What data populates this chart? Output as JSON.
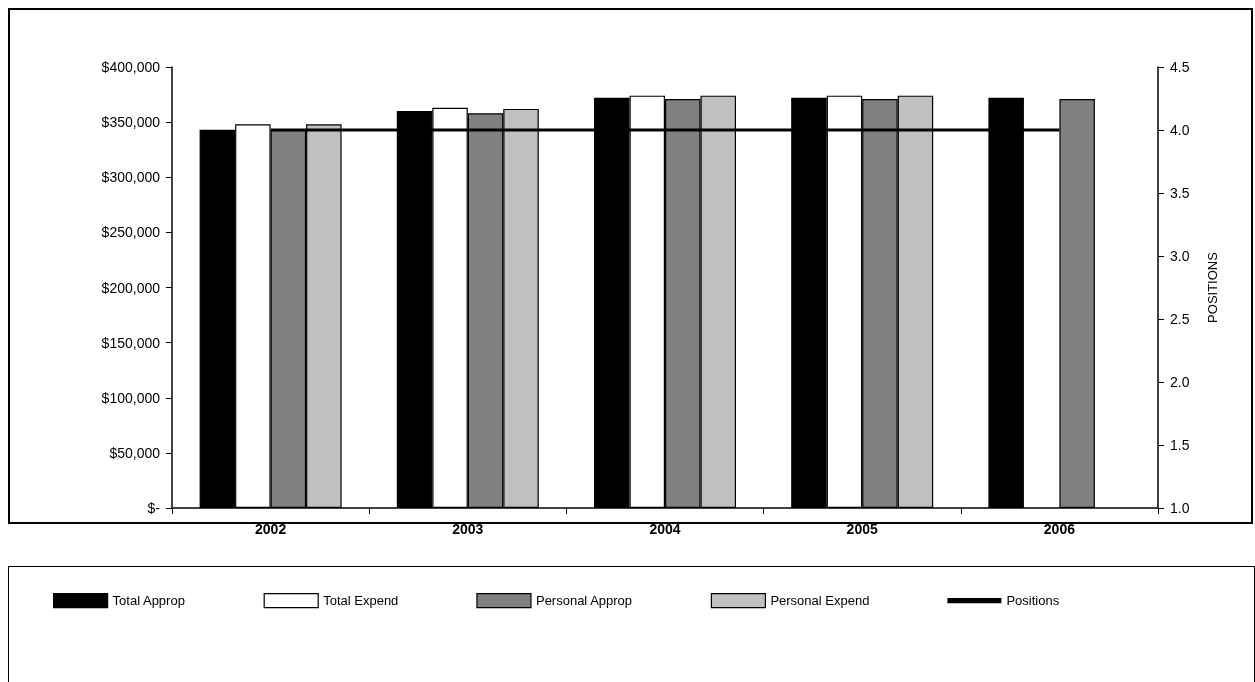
{
  "chart_data": {
    "type": "bar",
    "categories": [
      "2002",
      "2003",
      "2004",
      "2005",
      "2006"
    ],
    "series": [
      {
        "name": "Total Approp",
        "color": "#000000",
        "values": [
          343000,
          360000,
          372000,
          372000,
          372000
        ]
      },
      {
        "name": "Total Expend",
        "color": "#ffffff",
        "values": [
          348000,
          363000,
          374000,
          374000,
          null
        ]
      },
      {
        "name": "Personal Approp",
        "color": "#808080",
        "values": [
          343000,
          358000,
          371000,
          371000,
          371000
        ]
      },
      {
        "name": "Personal Expend",
        "color": "#c0c0c0",
        "values": [
          348000,
          362000,
          374000,
          374000,
          null
        ]
      },
      {
        "name": "Positions",
        "type": "line",
        "axis": "y2",
        "color": "#000000",
        "values": [
          4.0,
          4.0,
          4.0,
          4.0,
          4.0
        ]
      }
    ],
    "ylim": [
      0,
      400000
    ],
    "yticks": [
      {
        "value": 0,
        "label": "$-"
      },
      {
        "value": 50000,
        "label": "$50,000"
      },
      {
        "value": 100000,
        "label": "$100,000"
      },
      {
        "value": 150000,
        "label": "$150,000"
      },
      {
        "value": 200000,
        "label": "$200,000"
      },
      {
        "value": 250000,
        "label": "$250,000"
      },
      {
        "value": 300000,
        "label": "$300,000"
      },
      {
        "value": 350000,
        "label": "$350,000"
      },
      {
        "value": 400000,
        "label": "$400,000"
      }
    ],
    "y2label": "POSITIONS",
    "y2lim": [
      1.0,
      4.5
    ],
    "y2ticks": [
      {
        "value": 1,
        "label": "1.0"
      },
      {
        "value": 1.5,
        "label": "1.5"
      },
      {
        "value": 2,
        "label": "2.0"
      },
      {
        "value": 2.5,
        "label": "2.5"
      },
      {
        "value": 3,
        "label": "3.0"
      },
      {
        "value": 3.5,
        "label": "3.5"
      },
      {
        "value": 4,
        "label": "4.0"
      },
      {
        "value": 4.5,
        "label": "4.5"
      }
    ],
    "grid": false,
    "legend": "bottom",
    "marker": "none",
    "line_style": "solid"
  }
}
